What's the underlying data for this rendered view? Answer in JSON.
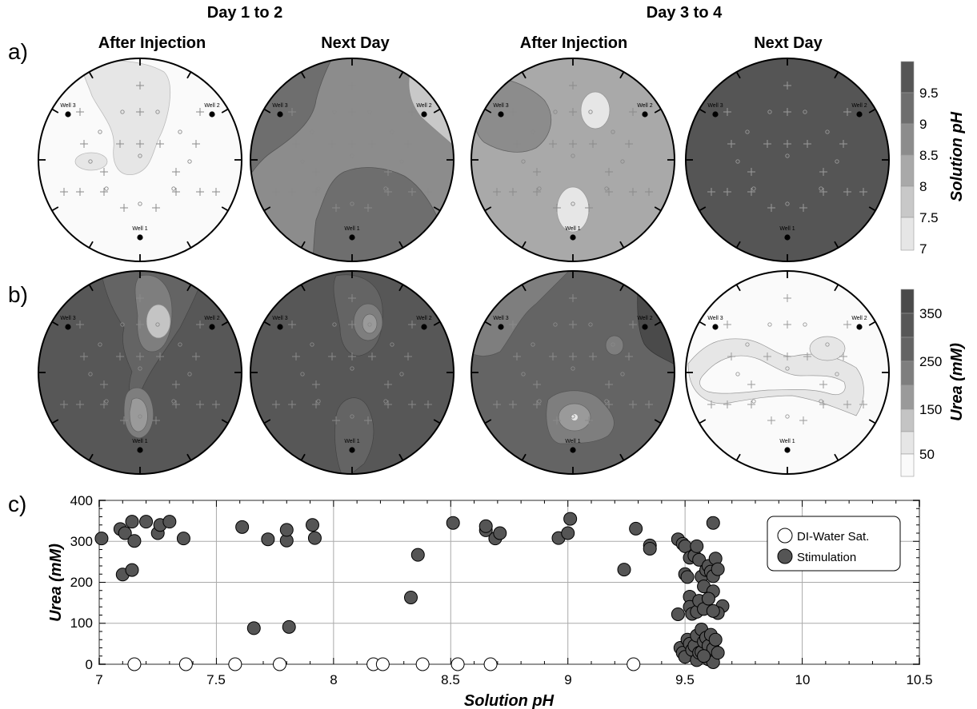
{
  "colors": {
    "c7": "#fafafa",
    "c75": "#e6e6e6",
    "c8": "#c8c8c8",
    "c85": "#a9a9a9",
    "c9": "#8c8c8c",
    "c95": "#6e6e6e",
    "c10": "#555555",
    "u0": "#fafafa",
    "u1": "#e6e6e6",
    "u2": "#c4c4c4",
    "u3": "#9a9a9a",
    "u4": "#7e7e7e",
    "u5": "#646464",
    "u6": "#575757",
    "u7": "#4a4a4a",
    "marker_fill": "#555555",
    "grid": "#aaaaaa"
  },
  "group_titles": [
    "Day 1 to 2",
    "Day 3 to 4"
  ],
  "column_titles": [
    "After Injection",
    "Next Day",
    "After Injection",
    "Next Day"
  ],
  "panel_labels": [
    "a)",
    "b)",
    "c)"
  ],
  "wells": [
    "Well 1",
    "Well 2",
    "Well 3"
  ],
  "colorbar_ph": {
    "title": "Solution pH",
    "ticks": [
      "9.5",
      "9",
      "8.5",
      "8",
      "7.5",
      "7"
    ]
  },
  "colorbar_urea": {
    "title": "Urea (mM)",
    "ticks": [
      "350",
      "250",
      "150",
      "50"
    ]
  },
  "chart_data": {
    "type": "scatter",
    "xlabel": "Solution pH",
    "ylabel": "Urea (mM)",
    "xlim": [
      7,
      10.5
    ],
    "ylim": [
      0,
      400
    ],
    "xticks": [
      "7",
      "7.5",
      "8",
      "8.5",
      "9",
      "9.5",
      "10",
      "10.5"
    ],
    "yticks": [
      "0",
      "100",
      "200",
      "300",
      "400"
    ],
    "grid": true,
    "legend_position": "top-right",
    "series": [
      {
        "name": "DI-Water Sat.",
        "marker": "open-circle",
        "points": [
          [
            7.15,
            0
          ],
          [
            7.37,
            0
          ],
          [
            7.58,
            0
          ],
          [
            7.77,
            0
          ],
          [
            8.17,
            0
          ],
          [
            8.21,
            0
          ],
          [
            8.38,
            0
          ],
          [
            8.53,
            0
          ],
          [
            8.67,
            0
          ],
          [
            9.28,
            0
          ]
        ]
      },
      {
        "name": "Stimulation",
        "marker": "filled-circle",
        "points": [
          [
            7.01,
            307
          ],
          [
            7.09,
            330
          ],
          [
            7.11,
            320
          ],
          [
            7.14,
            348
          ],
          [
            7.15,
            301
          ],
          [
            7.2,
            348
          ],
          [
            7.25,
            320
          ],
          [
            7.26,
            340
          ],
          [
            7.3,
            348
          ],
          [
            7.36,
            307
          ],
          [
            7.1,
            219
          ],
          [
            7.14,
            230
          ],
          [
            7.61,
            335
          ],
          [
            7.66,
            88
          ],
          [
            7.72,
            305
          ],
          [
            7.8,
            302
          ],
          [
            7.8,
            328
          ],
          [
            7.81,
            91
          ],
          [
            7.91,
            340
          ],
          [
            7.92,
            308
          ],
          [
            8.33,
            163
          ],
          [
            8.36,
            267
          ],
          [
            8.51,
            345
          ],
          [
            8.65,
            327
          ],
          [
            8.65,
            337
          ],
          [
            8.69,
            307
          ],
          [
            8.71,
            320
          ],
          [
            8.96,
            308
          ],
          [
            9.0,
            320
          ],
          [
            9.01,
            355
          ],
          [
            9.24,
            231
          ],
          [
            9.29,
            331
          ],
          [
            9.35,
            290
          ],
          [
            9.35,
            282
          ],
          [
            9.47,
            305
          ],
          [
            9.49,
            294
          ],
          [
            9.5,
            288
          ],
          [
            9.5,
            220
          ],
          [
            9.51,
            213
          ],
          [
            9.52,
            260
          ],
          [
            9.54,
            265
          ],
          [
            9.55,
            288
          ],
          [
            9.56,
            255
          ],
          [
            9.57,
            214
          ],
          [
            9.58,
            190
          ],
          [
            9.59,
            230
          ],
          [
            9.6,
            240
          ],
          [
            9.61,
            226
          ],
          [
            9.62,
            345
          ],
          [
            9.62,
            215
          ],
          [
            9.62,
            178
          ],
          [
            9.63,
            258
          ],
          [
            9.64,
            232
          ],
          [
            9.66,
            142
          ],
          [
            9.64,
            125
          ],
          [
            9.47,
            122
          ],
          [
            9.52,
            165
          ],
          [
            9.52,
            140
          ],
          [
            9.53,
            123
          ],
          [
            9.55,
            128
          ],
          [
            9.56,
            155
          ],
          [
            9.58,
            135
          ],
          [
            9.6,
            160
          ],
          [
            9.62,
            130
          ],
          [
            9.48,
            40
          ],
          [
            9.49,
            28
          ],
          [
            9.5,
            18
          ],
          [
            9.51,
            60
          ],
          [
            9.52,
            50
          ],
          [
            9.53,
            35
          ],
          [
            9.54,
            45
          ],
          [
            9.55,
            70
          ],
          [
            9.55,
            10
          ],
          [
            9.56,
            28
          ],
          [
            9.57,
            85
          ],
          [
            9.57,
            30
          ],
          [
            9.58,
            55
          ],
          [
            9.59,
            65
          ],
          [
            9.6,
            12
          ],
          [
            9.6,
            45
          ],
          [
            9.61,
            72
          ],
          [
            9.62,
            38
          ],
          [
            9.62,
            5
          ],
          [
            9.63,
            60
          ],
          [
            9.64,
            28
          ],
          [
            9.58,
            20
          ]
        ]
      }
    ]
  }
}
